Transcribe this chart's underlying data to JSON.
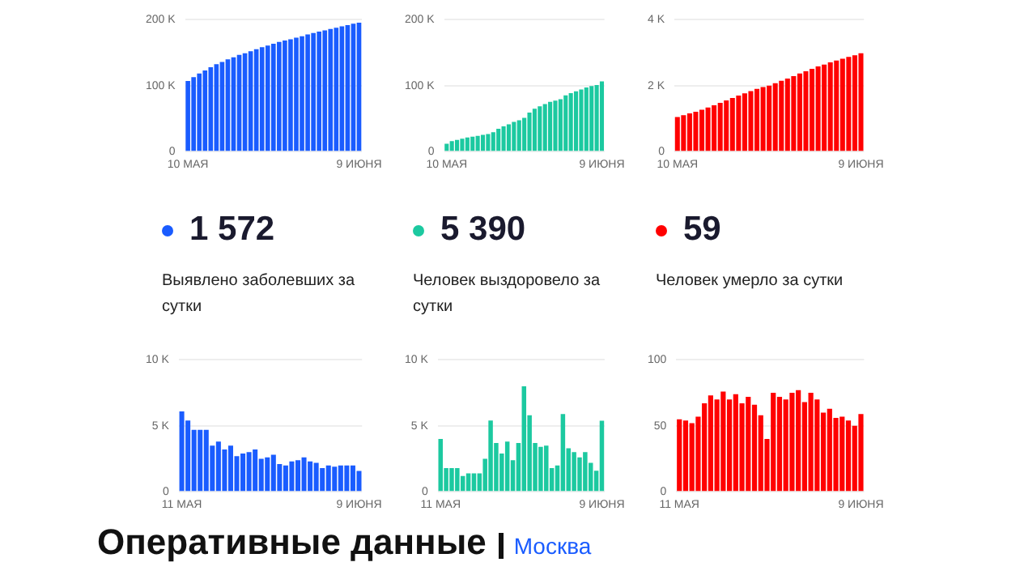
{
  "chart_data": [
    {
      "type": "bar",
      "categories": [
        "10 МАЯ",
        null,
        null,
        null,
        null,
        null,
        null,
        null,
        null,
        null,
        null,
        null,
        null,
        null,
        null,
        null,
        null,
        null,
        null,
        null,
        null,
        null,
        null,
        null,
        null,
        null,
        null,
        null,
        null,
        null,
        "9 ИЮНЯ"
      ],
      "color": "#1a5cff",
      "grid": "y",
      "ylim": [
        0,
        200000
      ],
      "yticks": [
        0,
        {
          "value": 100000,
          "label": "100 K"
        },
        {
          "value": 200000,
          "label": "200 K"
        }
      ],
      "values": [
        107000,
        113100,
        118500,
        123200,
        127900,
        132600,
        136100,
        139900,
        143100,
        146600,
        149300,
        152200,
        155200,
        158400,
        160900,
        163500,
        166300,
        168400,
        170400,
        172700,
        175100,
        177700,
        180000,
        182200,
        184000,
        186000,
        187900,
        189900,
        191900,
        193900,
        195500
      ]
    },
    {
      "type": "bar",
      "categories": [
        "10 МАЯ",
        null,
        null,
        null,
        null,
        null,
        null,
        null,
        null,
        null,
        null,
        null,
        null,
        null,
        null,
        null,
        null,
        null,
        null,
        null,
        null,
        null,
        null,
        null,
        null,
        null,
        null,
        null,
        null,
        null,
        "9 ИЮНЯ"
      ],
      "color": "#1cc9a0",
      "grid": "y",
      "ylim": [
        0,
        200000
      ],
      "yticks": [
        0,
        {
          "value": 100000,
          "label": "100 K"
        },
        {
          "value": 200000,
          "label": "200 K"
        }
      ],
      "values": [
        12000,
        16000,
        17800,
        19600,
        21400,
        22600,
        24000,
        25400,
        26800,
        29300,
        34700,
        38400,
        41300,
        45100,
        47500,
        51200,
        59200,
        65000,
        68700,
        72100,
        75600,
        77400,
        79400,
        85300,
        88600,
        91600,
        94200,
        97200,
        99400,
        101000,
        106400
      ]
    },
    {
      "type": "bar",
      "categories": [
        "10 МАЯ",
        null,
        null,
        null,
        null,
        null,
        null,
        null,
        null,
        null,
        null,
        null,
        null,
        null,
        null,
        null,
        null,
        null,
        null,
        null,
        null,
        null,
        null,
        null,
        null,
        null,
        null,
        null,
        null,
        null,
        "9 ИЮНЯ"
      ],
      "color": "#ff0000",
      "grid": "y",
      "ylim": [
        0,
        4000
      ],
      "yticks": [
        0,
        {
          "value": 2000,
          "label": "2 K"
        },
        {
          "value": 4000,
          "label": "4 K"
        }
      ],
      "values": [
        1050,
        1105,
        1159,
        1211,
        1268,
        1335,
        1408,
        1478,
        1554,
        1624,
        1698,
        1765,
        1837,
        1903,
        1961,
        2001,
        2076,
        2148,
        2218,
        2293,
        2370,
        2438,
        2513,
        2583,
        2643,
        2706,
        2762,
        2819,
        2873,
        2923,
        2982
      ]
    },
    {
      "type": "other",
      "title": "1 572",
      "color": "#1a5cff",
      "annotations": [
        "Выявлено заболевших за сутки"
      ]
    },
    {
      "type": "other",
      "title": "5 390",
      "color": "#1cc9a0",
      "annotations": [
        "Человек выздоровело за сутки"
      ]
    },
    {
      "type": "other",
      "title": "59",
      "color": "#ff0000",
      "annotations": [
        "Человек умерло за сутки"
      ]
    },
    {
      "type": "bar",
      "categories": [
        "11 МАЯ",
        null,
        null,
        null,
        null,
        null,
        null,
        null,
        null,
        null,
        null,
        null,
        null,
        null,
        null,
        null,
        null,
        null,
        null,
        null,
        null,
        null,
        null,
        null,
        null,
        null,
        null,
        null,
        null,
        "9 ИЮНЯ"
      ],
      "color": "#1a5cff",
      "grid": "y",
      "ylim": [
        0,
        10000
      ],
      "yticks": [
        0,
        {
          "value": 5000,
          "label": "5 K"
        },
        {
          "value": 10000,
          "label": "10 K"
        }
      ],
      "values": [
        6100,
        5400,
        4700,
        4700,
        4700,
        3500,
        3800,
        3200,
        3500,
        2700,
        2900,
        3000,
        3200,
        2500,
        2600,
        2800,
        2100,
        2000,
        2300,
        2400,
        2600,
        2300,
        2200,
        1800,
        2000,
        1900,
        2000,
        2000,
        2000,
        1572
      ]
    },
    {
      "type": "bar",
      "categories": [
        "11 МАЯ",
        null,
        null,
        null,
        null,
        null,
        null,
        null,
        null,
        null,
        null,
        null,
        null,
        null,
        null,
        null,
        null,
        null,
        null,
        null,
        null,
        null,
        null,
        null,
        null,
        null,
        null,
        null,
        null,
        "9 ИЮНЯ"
      ],
      "color": "#1cc9a0",
      "grid": "y",
      "ylim": [
        0,
        10000
      ],
      "yticks": [
        0,
        {
          "value": 5000,
          "label": "5 K"
        },
        {
          "value": 10000,
          "label": "10 K"
        }
      ],
      "values": [
        4000,
        1800,
        1800,
        1800,
        1200,
        1400,
        1400,
        1400,
        2500,
        5400,
        3700,
        2900,
        3800,
        2400,
        3700,
        8000,
        5800,
        3700,
        3400,
        3500,
        1800,
        2000,
        5900,
        3300,
        3000,
        2600,
        3000,
        2200,
        1600,
        5390
      ]
    },
    {
      "type": "bar",
      "categories": [
        "11 МАЯ",
        null,
        null,
        null,
        null,
        null,
        null,
        null,
        null,
        null,
        null,
        null,
        null,
        null,
        null,
        null,
        null,
        null,
        null,
        null,
        null,
        null,
        null,
        null,
        null,
        null,
        null,
        null,
        null,
        "9 ИЮНЯ"
      ],
      "color": "#ff0000",
      "grid": "y",
      "ylim": [
        0,
        100
      ],
      "yticks": [
        0,
        50,
        100
      ],
      "values": [
        55,
        54,
        52,
        57,
        67,
        73,
        70,
        76,
        70,
        74,
        67,
        72,
        66,
        58,
        40,
        75,
        72,
        70,
        75,
        77,
        68,
        75,
        70,
        60,
        63,
        56,
        57,
        54,
        50,
        59
      ]
    },
    {
      "type": "other",
      "title": "Оперативные данные",
      "subtitle": "Москва"
    }
  ]
}
